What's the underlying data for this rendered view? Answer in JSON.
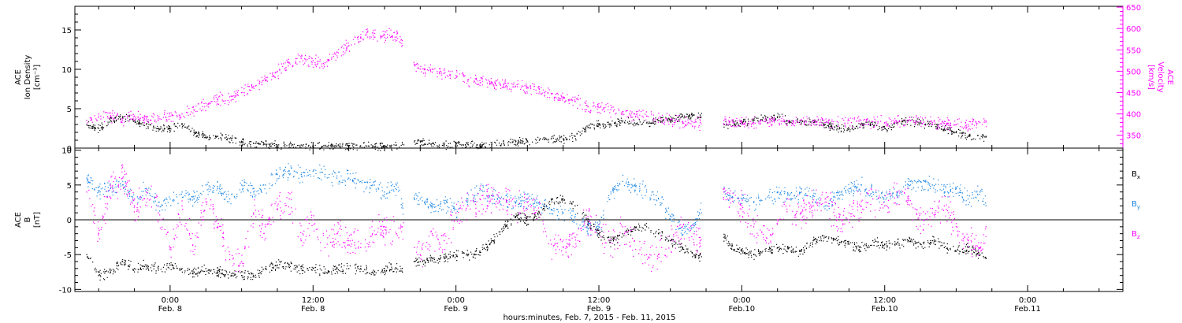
{
  "chart_data": [
    {
      "type": "scatter",
      "panel": "top",
      "ylabel": [
        "ACE",
        "Ion Density",
        "[cm⁻³]"
      ],
      "y2label": [
        "ACE",
        "Velocity",
        "[km/s]"
      ],
      "ylim": [
        0,
        18
      ],
      "y2lim": [
        320,
        652
      ],
      "yticks": [
        0,
        5,
        10,
        15
      ],
      "y2ticks": [
        350,
        400,
        450,
        500,
        550,
        600,
        650
      ],
      "series": [
        {
          "name": "Ion Density",
          "axis": "left",
          "color": "#000000",
          "x": [
            -7,
            -6,
            -5,
            -4,
            -3,
            -2,
            -1,
            0,
            1,
            2,
            3,
            4,
            5,
            6,
            7,
            8,
            9,
            10,
            11,
            12,
            13,
            14,
            15,
            16,
            17,
            18,
            19,
            19.5,
            20.5,
            21,
            22,
            23,
            24,
            25,
            26,
            27,
            28,
            29,
            30,
            31,
            32,
            33,
            34,
            35,
            36,
            37,
            38,
            39,
            40,
            41,
            42,
            43,
            44,
            44.5,
            46.5,
            47,
            48,
            49,
            50,
            51,
            52,
            53,
            54,
            55,
            56,
            57,
            58,
            59,
            60,
            61,
            62,
            63,
            64,
            65,
            66,
            67,
            68,
            68.5
          ],
          "y": [
            3,
            2.5,
            3.5,
            4,
            3.5,
            3,
            2.5,
            2.5,
            3,
            2,
            1.5,
            1.5,
            1.2,
            0.8,
            0.6,
            0.5,
            0.4,
            0.4,
            0.4,
            0.3,
            0.3,
            0.3,
            0.3,
            0.3,
            0.3,
            0.3,
            0.4,
            0.5,
            0.8,
            0.9,
            0.6,
            0.4,
            0.5,
            0.5,
            0.4,
            0.5,
            0.6,
            0.8,
            0.9,
            1,
            1.2,
            1.2,
            1.5,
            2.8,
            3,
            3,
            3.5,
            3.2,
            3.2,
            3.5,
            3.6,
            4,
            4.2,
            4.2,
            3,
            3,
            3.2,
            3.6,
            3.8,
            4,
            3.5,
            3.2,
            3.5,
            3,
            2.5,
            2.5,
            3,
            3,
            2.5,
            3.2,
            3.5,
            3.2,
            3,
            2.5,
            2,
            1.5,
            1.2,
            1.5
          ]
        },
        {
          "name": "Velocity",
          "axis": "right",
          "color": "#ff00ff",
          "x": [
            -7,
            -6,
            -5,
            -4,
            -3,
            -2,
            -1,
            0,
            1,
            2,
            3,
            4,
            5,
            6,
            7,
            8,
            9,
            10,
            11,
            12,
            13,
            14,
            15,
            16,
            17,
            18,
            19,
            19.5,
            20.5,
            21,
            22,
            23,
            24,
            25,
            26,
            27,
            28,
            29,
            30,
            31,
            32,
            33,
            34,
            35,
            36,
            37,
            38,
            39,
            40,
            41,
            42,
            43,
            44,
            44.5,
            46.5,
            47,
            48,
            49,
            50,
            51,
            52,
            53,
            54,
            55,
            56,
            57,
            58,
            59,
            60,
            61,
            62,
            63,
            64,
            65,
            66,
            67,
            68,
            68.5
          ],
          "y": [
            385,
            400,
            395,
            385,
            395,
            390,
            390,
            395,
            400,
            410,
            425,
            435,
            440,
            450,
            465,
            480,
            500,
            520,
            530,
            525,
            520,
            545,
            560,
            580,
            590,
            585,
            580,
            560,
            515,
            505,
            505,
            495,
            490,
            480,
            478,
            474,
            468,
            465,
            462,
            458,
            448,
            440,
            430,
            420,
            415,
            410,
            405,
            400,
            395,
            390,
            386,
            382,
            380,
            380,
            385,
            383,
            380,
            380,
            382,
            385,
            385,
            385,
            383,
            380,
            382,
            385,
            384,
            382,
            380,
            382,
            385,
            382,
            380,
            378,
            375,
            375,
            380,
            384
          ]
        }
      ]
    },
    {
      "type": "scatter",
      "panel": "bottom",
      "ylabel": [
        "ACE",
        "B",
        "[nT]"
      ],
      "ylim": [
        -10.3,
        10.3
      ],
      "yticks": [
        -10,
        -5,
        0,
        5,
        10
      ],
      "legend": [
        "Bx",
        "By",
        "Bz"
      ],
      "series": [
        {
          "name": "Bx",
          "color": "#000000",
          "x": [
            -7,
            -6,
            -5,
            -4,
            -3,
            -2,
            -1,
            0,
            1,
            2,
            3,
            4,
            5,
            6,
            7,
            8,
            9,
            10,
            11,
            12,
            13,
            14,
            15,
            16,
            17,
            18,
            19,
            19.5,
            20.5,
            21,
            22,
            23,
            24,
            25,
            26,
            27,
            28,
            29,
            30,
            31,
            32,
            33,
            34,
            35,
            36,
            37,
            38,
            39,
            40,
            41,
            42,
            43,
            44,
            44.5,
            46.5,
            47,
            48,
            49,
            50,
            51,
            52,
            53,
            54,
            55,
            56,
            57,
            58,
            59,
            60,
            61,
            62,
            63,
            64,
            65,
            66,
            67,
            68,
            68.5
          ],
          "y": [
            -5,
            -8,
            -7.5,
            -6,
            -7,
            -6.5,
            -7,
            -6.5,
            -7,
            -7.5,
            -7,
            -7.5,
            -7.5,
            -8,
            -8,
            -7,
            -6.5,
            -6.5,
            -7,
            -7,
            -7.5,
            -7,
            -7,
            -7,
            -7.5,
            -7,
            -7,
            -7.5,
            -6,
            -6,
            -5.5,
            -5.5,
            -5,
            -5,
            -4.5,
            -3,
            -1,
            0.5,
            0,
            1,
            3,
            3,
            2,
            0,
            -2,
            -3,
            -2,
            -1,
            -1,
            -2,
            -3,
            -4,
            -5,
            -5,
            -2.5,
            -3.5,
            -4.5,
            -5,
            -4.5,
            -4,
            -4,
            -4.5,
            -3,
            -2.5,
            -3,
            -3.5,
            -4,
            -3,
            -3.5,
            -3.5,
            -3,
            -3.5,
            -3,
            -4,
            -4.5,
            -4,
            -5,
            -5.5
          ]
        },
        {
          "name": "By",
          "color": "#1e88e5",
          "x": [
            -7,
            -6,
            -5,
            -4,
            -3,
            -2,
            -1,
            0,
            1,
            2,
            3,
            4,
            5,
            6,
            7,
            8,
            9,
            10,
            11,
            12,
            13,
            14,
            15,
            16,
            17,
            18,
            19,
            19.5,
            20.5,
            21,
            22,
            23,
            24,
            25,
            26,
            27,
            28,
            29,
            30,
            31,
            32,
            33,
            34,
            35,
            36,
            37,
            38,
            39,
            40,
            41,
            42,
            43,
            44,
            44.5,
            46.5,
            47,
            48,
            49,
            50,
            51,
            52,
            53,
            54,
            55,
            56,
            57,
            58,
            59,
            60,
            61,
            62,
            63,
            64,
            65,
            66,
            67,
            68,
            68.5
          ],
          "y": [
            6,
            4,
            4.5,
            5,
            3,
            4.5,
            2,
            3,
            4,
            3,
            5,
            4.5,
            3,
            5,
            4,
            5,
            6.5,
            7,
            6.5,
            7,
            6.5,
            6,
            6,
            5.5,
            5,
            4,
            5,
            2,
            3,
            3,
            2,
            2.5,
            1.5,
            3,
            4.5,
            3.5,
            3,
            2.5,
            3,
            2.5,
            1.5,
            1,
            0.5,
            -1,
            -1,
            4,
            5.5,
            5,
            4,
            3,
            0.5,
            -1.5,
            -0.5,
            1.5,
            4,
            3.5,
            3,
            2.5,
            3,
            4,
            3.5,
            4,
            3.5,
            2,
            3.5,
            4.5,
            5,
            4,
            3.5,
            3.5,
            5,
            5.5,
            5,
            4,
            4.5,
            3,
            4,
            2
          ]
        },
        {
          "name": "Bz",
          "color": "#ff00ff",
          "x": [
            -7,
            -6,
            -5,
            -4,
            -3,
            -2,
            -1,
            0,
            1,
            2,
            3,
            4,
            5,
            6,
            7,
            8,
            9,
            10,
            11,
            12,
            13,
            14,
            15,
            16,
            17,
            18,
            19,
            19.5,
            20.5,
            21,
            22,
            23,
            24,
            25,
            26,
            27,
            28,
            29,
            30,
            31,
            32,
            33,
            34,
            35,
            36,
            37,
            38,
            39,
            40,
            41,
            42,
            43,
            44,
            44.5,
            46.5,
            47,
            48,
            49,
            50,
            51,
            52,
            53,
            54,
            55,
            56,
            57,
            58,
            59,
            60,
            61,
            62,
            63,
            64,
            65,
            66,
            67,
            68,
            68.5
          ],
          "y": [
            4,
            -2,
            5,
            6,
            2,
            4,
            1,
            -4,
            2,
            -5,
            3,
            -1,
            -5,
            -6,
            1,
            -1,
            2,
            3,
            -3,
            0,
            -4,
            -2,
            -3,
            -4,
            -2,
            -1,
            -2,
            -1,
            -4,
            -5,
            -2,
            -3,
            1,
            2,
            3,
            3.5,
            3,
            2,
            2.5,
            1,
            -3.5,
            -4,
            -2.5,
            0,
            -2,
            -3,
            -1,
            -3,
            -5,
            -5,
            -3,
            -1,
            -2,
            -3,
            4,
            3,
            2,
            -1,
            -3,
            0,
            2,
            1,
            2,
            3,
            0,
            1,
            2,
            3,
            2,
            4,
            3,
            0,
            1,
            2,
            -1,
            -3,
            -4,
            -1
          ]
        }
      ]
    }
  ],
  "xaxis": {
    "xlim": [
      -8,
      80
    ],
    "ticks": [
      {
        "x": 0,
        "line1": "0:00",
        "line2": "Feb. 8"
      },
      {
        "x": 12,
        "line1": "12:00",
        "line2": "Feb. 8"
      },
      {
        "x": 24,
        "line1": "0:00",
        "line2": "Feb. 9"
      },
      {
        "x": 36,
        "line1": "12:00",
        "line2": "Feb. 9"
      },
      {
        "x": 48,
        "line1": "0:00",
        "line2": "Feb.10"
      },
      {
        "x": 60,
        "line1": "12:00",
        "line2": "Feb.10"
      },
      {
        "x": 72,
        "line1": "0:00",
        "line2": "Feb.11"
      }
    ],
    "label": "hours:minutes, Feb.  7, 2015 - Feb. 11, 2015"
  }
}
